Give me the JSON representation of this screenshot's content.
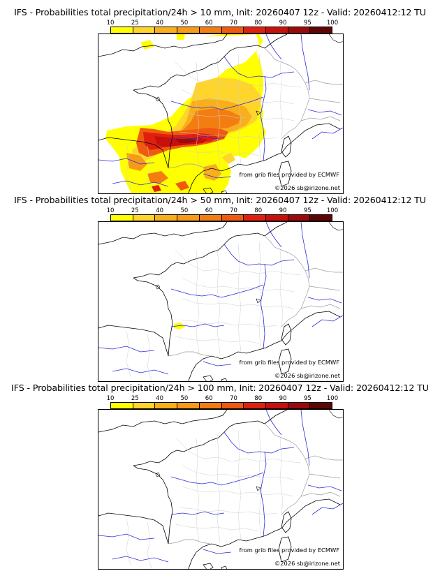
{
  "colorbar": {
    "ticks": [
      "10",
      "25",
      "40",
      "50",
      "60",
      "70",
      "80",
      "90",
      "95",
      "100"
    ],
    "colors": [
      "#ffff00",
      "#ffd52b",
      "#f9ae1b",
      "#f69a18",
      "#f47d12",
      "#ef5a10",
      "#e0200e",
      "#c7100c",
      "#9b0a0a",
      "#5e0606"
    ]
  },
  "credits": {
    "source": "from grib files provided by ECMWF",
    "copyright": "©2026 sb@irizone.net"
  },
  "panels": [
    {
      "title": "IFS - Probabilities total precipitation/24h > 10 mm, Init: 20260407 12z - Valid: 20260412:12 TU"
    },
    {
      "title": "IFS - Probabilities total precipitation/24h > 50 mm, Init: 20260407 12z - Valid: 20260412:12 TU"
    },
    {
      "title": "IFS - Probabilities total precipitation/24h > 100 mm, Init: 20260407 12z - Valid: 20260412:12 TU"
    }
  ]
}
